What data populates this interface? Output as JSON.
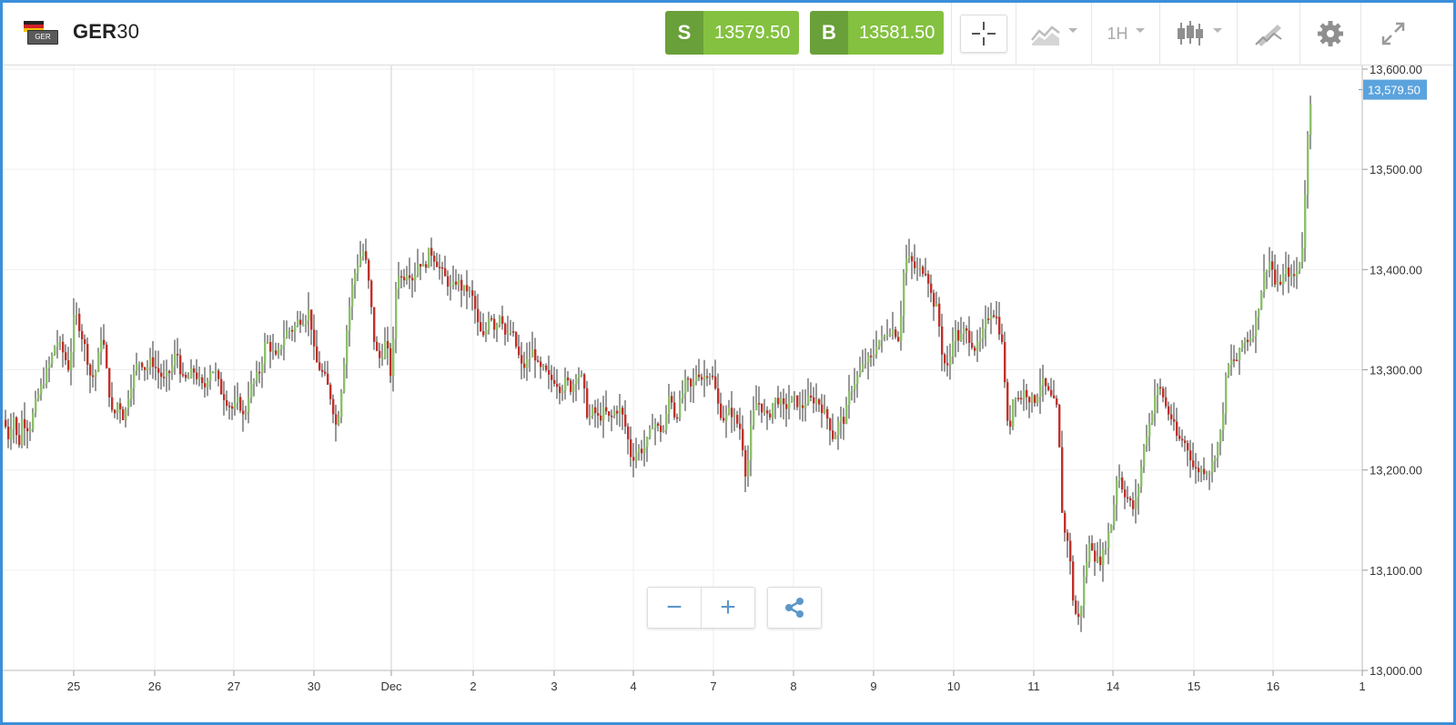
{
  "instrument": {
    "symbol_bold": "GER",
    "symbol_rest": "30",
    "flag_chip": "GER"
  },
  "trade": {
    "sell": {
      "label": "S",
      "price": "13579.50"
    },
    "buy": {
      "label": "B",
      "price": "13581.50"
    }
  },
  "toolbar": {
    "crosshair_icon": "crosshair-icon",
    "indicators_icon": "indicators-icon",
    "timeframe": "1H",
    "chart_type_icon": "candlestick-icon",
    "draw_icon": "draw-icon",
    "settings_icon": "gear-icon",
    "fullscreen_icon": "expand-icon"
  },
  "zoom": {
    "minus": "−",
    "plus": "+",
    "share_icon": "share-icon"
  },
  "colors": {
    "up": "#8cc06a",
    "down": "#c0302a",
    "wick": "#333333",
    "grid": "#efefef",
    "price_tag": "#5ba3dd",
    "sell_bg": "#84c140",
    "sell_label_bg": "#6aa03a"
  },
  "chart_data": {
    "type": "candlestick",
    "y_axis": {
      "min": 13000,
      "max": 13600,
      "ticks": [
        "13,000.00",
        "13,100.00",
        "13,200.00",
        "13,300.00",
        "13,400.00",
        "13,500.00",
        "13,600.00"
      ],
      "tick_values": [
        13000,
        13100,
        13200,
        13300,
        13400,
        13500,
        13600
      ]
    },
    "x_axis": {
      "labels": [
        "25",
        "26",
        "27",
        "30",
        "Dec",
        "2",
        "3",
        "4",
        "7",
        "8",
        "9",
        "10",
        "11",
        "14",
        "15",
        "16",
        "1"
      ]
    },
    "current_price": 13579.5,
    "current_price_label": "13,579.50",
    "path": [
      [
        0,
        13250
      ],
      [
        6,
        13230
      ],
      [
        10,
        13260
      ],
      [
        16,
        13220
      ],
      [
        20,
        13250
      ],
      [
        28,
        13240
      ],
      [
        36,
        13270
      ],
      [
        44,
        13290
      ],
      [
        52,
        13310
      ],
      [
        58,
        13330
      ],
      [
        64,
        13320
      ],
      [
        72,
        13300
      ],
      [
        78,
        13360
      ],
      [
        84,
        13340
      ],
      [
        90,
        13320
      ],
      [
        96,
        13290
      ],
      [
        102,
        13300
      ],
      [
        108,
        13340
      ],
      [
        114,
        13290
      ],
      [
        120,
        13250
      ],
      [
        126,
        13270
      ],
      [
        132,
        13250
      ],
      [
        138,
        13280
      ],
      [
        144,
        13300
      ],
      [
        150,
        13310
      ],
      [
        156,
        13300
      ],
      [
        162,
        13310
      ],
      [
        168,
        13300
      ],
      [
        176,
        13290
      ],
      [
        184,
        13300
      ],
      [
        190,
        13320
      ],
      [
        196,
        13290
      ],
      [
        202,
        13290
      ],
      [
        208,
        13300
      ],
      [
        214,
        13290
      ],
      [
        220,
        13280
      ],
      [
        226,
        13300
      ],
      [
        232,
        13300
      ],
      [
        238,
        13280
      ],
      [
        244,
        13270
      ],
      [
        252,
        13260
      ],
      [
        258,
        13270
      ],
      [
        264,
        13250
      ],
      [
        270,
        13280
      ],
      [
        276,
        13290
      ],
      [
        282,
        13300
      ],
      [
        288,
        13330
      ],
      [
        294,
        13320
      ],
      [
        300,
        13310
      ],
      [
        306,
        13330
      ],
      [
        312,
        13340
      ],
      [
        318,
        13340
      ],
      [
        324,
        13350
      ],
      [
        330,
        13350
      ],
      [
        336,
        13360
      ],
      [
        342,
        13310
      ],
      [
        348,
        13300
      ],
      [
        354,
        13290
      ],
      [
        360,
        13270
      ],
      [
        366,
        13240
      ],
      [
        372,
        13290
      ],
      [
        378,
        13350
      ],
      [
        384,
        13390
      ],
      [
        390,
        13410
      ],
      [
        396,
        13420
      ],
      [
        402,
        13380
      ],
      [
        408,
        13320
      ],
      [
        414,
        13310
      ],
      [
        420,
        13330
      ],
      [
        426,
        13290
      ],
      [
        432,
        13400
      ],
      [
        438,
        13390
      ],
      [
        444,
        13400
      ],
      [
        450,
        13390
      ],
      [
        456,
        13410
      ],
      [
        462,
        13400
      ],
      [
        468,
        13420
      ],
      [
        474,
        13410
      ],
      [
        480,
        13400
      ],
      [
        486,
        13390
      ],
      [
        492,
        13380
      ],
      [
        498,
        13390
      ],
      [
        504,
        13380
      ],
      [
        510,
        13380
      ],
      [
        516,
        13370
      ],
      [
        522,
        13340
      ],
      [
        528,
        13330
      ],
      [
        534,
        13360
      ],
      [
        540,
        13340
      ],
      [
        546,
        13360
      ],
      [
        552,
        13330
      ],
      [
        558,
        13340
      ],
      [
        564,
        13320
      ],
      [
        570,
        13300
      ],
      [
        576,
        13310
      ],
      [
        582,
        13320
      ],
      [
        588,
        13300
      ],
      [
        594,
        13300
      ],
      [
        600,
        13290
      ],
      [
        606,
        13290
      ],
      [
        612,
        13280
      ],
      [
        618,
        13290
      ],
      [
        624,
        13280
      ],
      [
        630,
        13300
      ],
      [
        636,
        13290
      ],
      [
        642,
        13250
      ],
      [
        648,
        13260
      ],
      [
        654,
        13250
      ],
      [
        660,
        13260
      ],
      [
        666,
        13250
      ],
      [
        672,
        13260
      ],
      [
        678,
        13260
      ],
      [
        684,
        13240
      ],
      [
        690,
        13210
      ],
      [
        696,
        13220
      ],
      [
        702,
        13220
      ],
      [
        708,
        13230
      ],
      [
        714,
        13250
      ],
      [
        720,
        13240
      ],
      [
        726,
        13240
      ],
      [
        732,
        13280
      ],
      [
        738,
        13250
      ],
      [
        744,
        13270
      ],
      [
        750,
        13290
      ],
      [
        756,
        13280
      ],
      [
        762,
        13300
      ],
      [
        768,
        13290
      ],
      [
        774,
        13300
      ],
      [
        780,
        13290
      ],
      [
        786,
        13260
      ],
      [
        792,
        13250
      ],
      [
        798,
        13260
      ],
      [
        804,
        13250
      ],
      [
        810,
        13240
      ],
      [
        816,
        13190
      ],
      [
        822,
        13250
      ],
      [
        828,
        13270
      ],
      [
        834,
        13260
      ],
      [
        840,
        13250
      ],
      [
        846,
        13270
      ],
      [
        852,
        13270
      ],
      [
        858,
        13260
      ],
      [
        864,
        13270
      ],
      [
        870,
        13270
      ],
      [
        876,
        13260
      ],
      [
        882,
        13270
      ],
      [
        888,
        13270
      ],
      [
        894,
        13270
      ],
      [
        900,
        13260
      ],
      [
        906,
        13250
      ],
      [
        912,
        13230
      ],
      [
        918,
        13250
      ],
      [
        924,
        13250
      ],
      [
        930,
        13280
      ],
      [
        936,
        13290
      ],
      [
        942,
        13300
      ],
      [
        948,
        13310
      ],
      [
        954,
        13310
      ],
      [
        960,
        13330
      ],
      [
        966,
        13330
      ],
      [
        972,
        13340
      ],
      [
        978,
        13340
      ],
      [
        984,
        13330
      ],
      [
        990,
        13410
      ],
      [
        996,
        13410
      ],
      [
        1002,
        13400
      ],
      [
        1008,
        13400
      ],
      [
        1014,
        13400
      ],
      [
        1020,
        13370
      ],
      [
        1026,
        13360
      ],
      [
        1032,
        13310
      ],
      [
        1038,
        13300
      ],
      [
        1044,
        13340
      ],
      [
        1050,
        13330
      ],
      [
        1056,
        13340
      ],
      [
        1062,
        13330
      ],
      [
        1068,
        13320
      ],
      [
        1074,
        13330
      ],
      [
        1080,
        13350
      ],
      [
        1086,
        13360
      ],
      [
        1092,
        13350
      ],
      [
        1098,
        13320
      ],
      [
        1104,
        13230
      ],
      [
        1110,
        13280
      ],
      [
        1116,
        13270
      ],
      [
        1122,
        13280
      ],
      [
        1128,
        13270
      ],
      [
        1134,
        13270
      ],
      [
        1140,
        13290
      ],
      [
        1146,
        13280
      ],
      [
        1152,
        13270
      ],
      [
        1158,
        13260
      ],
      [
        1164,
        13140
      ],
      [
        1170,
        13130
      ],
      [
        1176,
        13060
      ],
      [
        1182,
        13050
      ],
      [
        1188,
        13100
      ],
      [
        1194,
        13130
      ],
      [
        1200,
        13110
      ],
      [
        1206,
        13110
      ],
      [
        1212,
        13130
      ],
      [
        1218,
        13150
      ],
      [
        1224,
        13200
      ],
      [
        1230,
        13180
      ],
      [
        1236,
        13170
      ],
      [
        1242,
        13160
      ],
      [
        1248,
        13190
      ],
      [
        1254,
        13230
      ],
      [
        1260,
        13250
      ],
      [
        1266,
        13280
      ],
      [
        1272,
        13280
      ],
      [
        1278,
        13260
      ],
      [
        1284,
        13250
      ],
      [
        1290,
        13230
      ],
      [
        1296,
        13230
      ],
      [
        1302,
        13220
      ],
      [
        1308,
        13200
      ],
      [
        1314,
        13200
      ],
      [
        1320,
        13200
      ],
      [
        1326,
        13200
      ],
      [
        1332,
        13220
      ],
      [
        1338,
        13240
      ],
      [
        1344,
        13300
      ],
      [
        1350,
        13310
      ],
      [
        1356,
        13310
      ],
      [
        1362,
        13330
      ],
      [
        1368,
        13330
      ],
      [
        1374,
        13340
      ],
      [
        1380,
        13370
      ],
      [
        1386,
        13400
      ],
      [
        1392,
        13410
      ],
      [
        1398,
        13380
      ],
      [
        1404,
        13390
      ],
      [
        1410,
        13400
      ],
      [
        1416,
        13390
      ],
      [
        1422,
        13400
      ],
      [
        1428,
        13430
      ],
      [
        1434,
        13560
      ],
      [
        1438,
        13579.5
      ]
    ]
  }
}
